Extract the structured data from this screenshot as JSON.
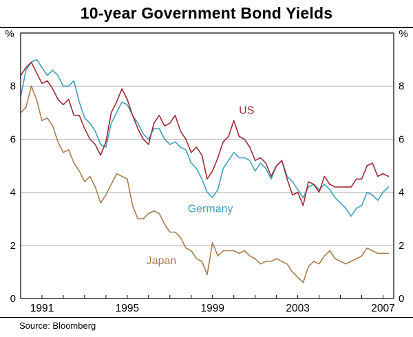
{
  "page": {
    "title": "10-year Government Bond Yields",
    "unit_left": "%",
    "unit_right": "%",
    "source": "Source: Bloomberg"
  },
  "chart_data": {
    "type": "line",
    "title": "10-year Government Bond Yields",
    "ylabel": "%",
    "source": "Bloomberg",
    "grid": "horizontal",
    "legend_position": "inline-labels",
    "xlim": [
      1990,
      2007.5
    ],
    "ylim": [
      0,
      10
    ],
    "yticks": [
      0,
      2,
      4,
      6,
      8
    ],
    "xticks": [
      1991,
      1995,
      1999,
      2003,
      2007
    ],
    "x": [
      1990,
      1990.25,
      1990.5,
      1990.75,
      1991,
      1991.25,
      1991.5,
      1991.75,
      1992,
      1992.25,
      1992.5,
      1992.75,
      1993,
      1993.25,
      1993.5,
      1993.75,
      1994,
      1994.25,
      1994.5,
      1994.75,
      1995,
      1995.25,
      1995.5,
      1995.75,
      1996,
      1996.25,
      1996.5,
      1996.75,
      1997,
      1997.25,
      1997.5,
      1997.75,
      1998,
      1998.25,
      1998.5,
      1998.75,
      1999,
      1999.25,
      1999.5,
      1999.75,
      2000,
      2000.25,
      2000.5,
      2000.75,
      2001,
      2001.25,
      2001.5,
      2001.75,
      2002,
      2002.25,
      2002.5,
      2002.75,
      2003,
      2003.25,
      2003.5,
      2003.75,
      2004,
      2004.25,
      2004.5,
      2004.75,
      2005,
      2005.25,
      2005.5,
      2005.75,
      2006,
      2006.25,
      2006.5,
      2006.75,
      2007,
      2007.25
    ],
    "series": [
      {
        "name": "Japan",
        "color": "#aa7c4a",
        "label_pos": {
          "x": 1996.6,
          "y": 1.3
        },
        "values": [
          7.0,
          7.2,
          8.0,
          7.5,
          6.7,
          6.8,
          6.5,
          5.9,
          5.5,
          5.6,
          5.1,
          4.8,
          4.4,
          4.6,
          4.2,
          3.6,
          3.9,
          4.3,
          4.7,
          4.6,
          4.5,
          3.5,
          3.0,
          3.0,
          3.2,
          3.3,
          3.2,
          2.8,
          2.5,
          2.5,
          2.3,
          1.9,
          1.8,
          1.5,
          1.4,
          0.9,
          2.1,
          1.6,
          1.8,
          1.8,
          1.8,
          1.7,
          1.8,
          1.6,
          1.5,
          1.3,
          1.4,
          1.4,
          1.5,
          1.4,
          1.3,
          1.0,
          0.8,
          0.6,
          1.2,
          1.4,
          1.3,
          1.6,
          1.8,
          1.5,
          1.4,
          1.3,
          1.4,
          1.5,
          1.6,
          1.9,
          1.8,
          1.7,
          1.7,
          1.7
        ]
      },
      {
        "name": "Germany",
        "color": "#3d9fc1",
        "label_pos": {
          "x": 1998.9,
          "y": 3.25
        },
        "values": [
          7.6,
          8.6,
          8.9,
          9.0,
          8.7,
          8.4,
          8.6,
          8.4,
          8.0,
          8.0,
          8.2,
          7.4,
          6.8,
          6.6,
          6.3,
          5.8,
          5.7,
          6.6,
          7.0,
          7.4,
          7.3,
          6.9,
          6.6,
          6.2,
          6.0,
          6.4,
          6.4,
          6.0,
          5.8,
          5.9,
          5.7,
          5.6,
          5.1,
          4.9,
          4.5,
          4.0,
          3.8,
          4.1,
          4.9,
          5.2,
          5.5,
          5.3,
          5.3,
          5.2,
          4.8,
          5.1,
          4.9,
          4.5,
          5.0,
          5.2,
          4.6,
          4.4,
          4.1,
          3.8,
          4.2,
          4.3,
          4.1,
          4.3,
          4.1,
          3.8,
          3.6,
          3.4,
          3.1,
          3.4,
          3.5,
          4.0,
          3.9,
          3.7,
          4.0,
          4.2
        ]
      },
      {
        "name": "US",
        "color": "#9e2b33",
        "label_pos": {
          "x": 2000.6,
          "y": 6.95
        },
        "values": [
          8.4,
          8.7,
          8.9,
          8.5,
          8.1,
          8.2,
          7.9,
          7.5,
          7.3,
          7.5,
          6.9,
          6.9,
          6.4,
          6.0,
          5.8,
          5.4,
          5.9,
          7.0,
          7.4,
          7.9,
          7.5,
          6.9,
          6.4,
          6.0,
          5.8,
          6.6,
          6.9,
          6.5,
          6.6,
          6.9,
          6.3,
          6.0,
          5.5,
          5.7,
          5.4,
          4.5,
          4.8,
          5.3,
          5.9,
          6.1,
          6.7,
          6.1,
          6.0,
          5.7,
          5.2,
          5.3,
          5.1,
          4.6,
          5.0,
          5.2,
          4.5,
          3.9,
          4.0,
          3.5,
          4.4,
          4.3,
          4.0,
          4.6,
          4.3,
          4.2,
          4.2,
          4.2,
          4.2,
          4.5,
          4.5,
          5.0,
          5.1,
          4.6,
          4.7,
          4.6
        ]
      }
    ]
  }
}
